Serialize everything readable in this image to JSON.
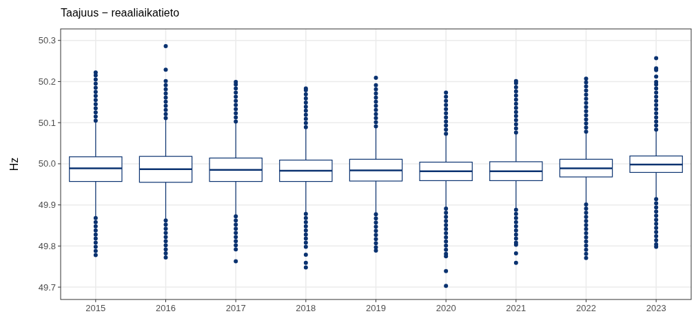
{
  "chart_data": {
    "type": "box",
    "title": "Taajuus − reaaliaikatieto",
    "ylabel": "Hz",
    "categories": [
      "2015",
      "2016",
      "2017",
      "2018",
      "2019",
      "2020",
      "2021",
      "2022",
      "2023"
    ],
    "color": "#0a3270",
    "ylim": [
      49.67,
      50.328
    ],
    "yticks": [
      {
        "value": 49.7,
        "label": "49.7"
      },
      {
        "value": 49.8,
        "label": "49.8"
      },
      {
        "value": 49.9,
        "label": "49.9"
      },
      {
        "value": 50,
        "label": "50.0"
      },
      {
        "value": 50.1,
        "label": "50.1"
      },
      {
        "value": 50.2,
        "label": "50.2"
      },
      {
        "value": 50.3,
        "label": "50.3"
      }
    ],
    "grid": true,
    "boxes": [
      {
        "low": 49.872,
        "q1": 49.957,
        "median": 49.989,
        "q3": 50.017,
        "high": 50.101,
        "outliers": [
          50.105,
          50.115,
          50.125,
          50.135,
          50.145,
          50.155,
          50.165,
          50.175,
          50.185,
          50.195,
          50.205,
          50.215,
          50.222,
          49.868,
          49.858,
          49.848,
          49.838,
          49.828,
          49.818,
          49.808,
          49.798,
          49.788,
          49.778
        ]
      },
      {
        "low": 49.866,
        "q1": 49.955,
        "median": 49.987,
        "q3": 50.018,
        "high": 50.107,
        "outliers": [
          50.111,
          50.121,
          50.131,
          50.141,
          50.151,
          50.161,
          50.171,
          50.181,
          50.191,
          50.201,
          50.229,
          50.286,
          49.862,
          49.852,
          49.842,
          49.832,
          49.822,
          49.812,
          49.802,
          49.792,
          49.782,
          49.772
        ]
      },
      {
        "low": 49.876,
        "q1": 49.957,
        "median": 49.985,
        "q3": 50.014,
        "high": 50.099,
        "outliers": [
          50.103,
          50.113,
          50.123,
          50.133,
          50.143,
          50.153,
          50.163,
          50.173,
          50.183,
          50.193,
          50.199,
          49.872,
          49.862,
          49.852,
          49.842,
          49.832,
          49.822,
          49.812,
          49.802,
          49.792,
          49.763
        ]
      },
      {
        "low": 49.882,
        "q1": 49.957,
        "median": 49.983,
        "q3": 50.009,
        "high": 50.085,
        "outliers": [
          50.089,
          50.099,
          50.109,
          50.119,
          50.129,
          50.139,
          50.149,
          50.159,
          50.169,
          50.179,
          50.183,
          49.878,
          49.868,
          49.858,
          49.848,
          49.838,
          49.828,
          49.818,
          49.808,
          49.798,
          49.779,
          49.759,
          49.748
        ]
      },
      {
        "low": 49.881,
        "q1": 49.958,
        "median": 49.984,
        "q3": 50.011,
        "high": 50.087,
        "outliers": [
          50.091,
          50.101,
          50.111,
          50.121,
          50.131,
          50.141,
          50.151,
          50.161,
          50.171,
          50.181,
          50.191,
          50.209,
          49.877,
          49.867,
          49.857,
          49.847,
          49.837,
          49.827,
          49.817,
          49.807,
          49.797,
          49.789
        ]
      },
      {
        "low": 49.895,
        "q1": 49.959,
        "median": 49.982,
        "q3": 50.004,
        "high": 50.069,
        "outliers": [
          50.073,
          50.083,
          50.093,
          50.103,
          50.113,
          50.123,
          50.133,
          50.143,
          50.153,
          50.163,
          50.173,
          49.891,
          49.881,
          49.871,
          49.861,
          49.851,
          49.841,
          49.831,
          49.821,
          49.811,
          49.801,
          49.791,
          49.781,
          49.775,
          49.739,
          49.703
        ]
      },
      {
        "low": 49.892,
        "q1": 49.959,
        "median": 49.982,
        "q3": 50.005,
        "high": 50.072,
        "outliers": [
          50.076,
          50.086,
          50.096,
          50.106,
          50.116,
          50.126,
          50.136,
          50.146,
          50.156,
          50.166,
          50.176,
          50.186,
          50.196,
          50.201,
          49.888,
          49.878,
          49.868,
          49.858,
          49.848,
          49.838,
          49.828,
          49.818,
          49.808,
          49.803,
          49.782,
          49.759
        ]
      },
      {
        "low": 49.905,
        "q1": 49.968,
        "median": 49.989,
        "q3": 50.011,
        "high": 50.074,
        "outliers": [
          50.078,
          50.088,
          50.098,
          50.108,
          50.118,
          50.128,
          50.138,
          50.148,
          50.158,
          50.168,
          50.178,
          50.188,
          50.198,
          50.207,
          49.901,
          49.891,
          49.881,
          49.871,
          49.861,
          49.851,
          49.841,
          49.831,
          49.821,
          49.811,
          49.801,
          49.791,
          49.781,
          49.771
        ]
      },
      {
        "low": 49.918,
        "q1": 49.979,
        "median": 49.998,
        "q3": 50.019,
        "high": 50.079,
        "outliers": [
          50.083,
          50.093,
          50.103,
          50.113,
          50.123,
          50.133,
          50.143,
          50.153,
          50.163,
          50.173,
          50.183,
          50.193,
          50.199,
          50.212,
          50.228,
          50.232,
          50.257,
          49.914,
          49.904,
          49.894,
          49.884,
          49.874,
          49.864,
          49.854,
          49.844,
          49.834,
          49.824,
          49.814,
          49.804,
          49.798
        ]
      }
    ]
  }
}
